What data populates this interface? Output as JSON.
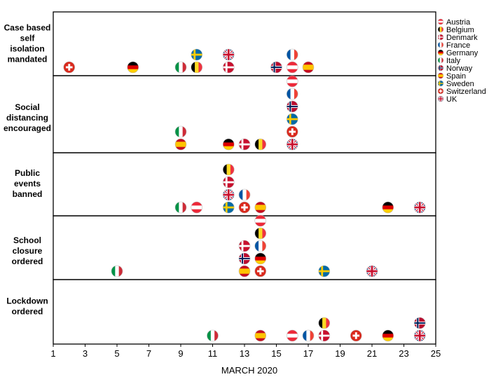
{
  "chart_data": {
    "type": "scatter",
    "xlabel": "MARCH 2020",
    "xlim": [
      1,
      25
    ],
    "x_ticks": [
      1,
      3,
      5,
      7,
      9,
      11,
      13,
      15,
      17,
      19,
      21,
      23,
      25
    ],
    "legend_position": "right",
    "countries": [
      "Austria",
      "Belgium",
      "Denmark",
      "France",
      "Germany",
      "Italy",
      "Norway",
      "Spain",
      "Sweden",
      "Switzerland",
      "UK"
    ],
    "panels": [
      {
        "label": [
          "Case based",
          "self",
          "isolation",
          "mandated"
        ],
        "points": [
          {
            "country": "Switzerland",
            "day": 2
          },
          {
            "country": "Germany",
            "day": 6
          },
          {
            "country": "Italy",
            "day": 9
          },
          {
            "country": "Belgium",
            "day": 10
          },
          {
            "country": "Sweden",
            "day": 10
          },
          {
            "country": "Denmark",
            "day": 12
          },
          {
            "country": "UK",
            "day": 12
          },
          {
            "country": "Norway",
            "day": 15
          },
          {
            "country": "Austria",
            "day": 16
          },
          {
            "country": "France",
            "day": 16
          },
          {
            "country": "Spain",
            "day": 17
          }
        ]
      },
      {
        "label": [
          "Social",
          "distancing",
          "encouraged"
        ],
        "points": [
          {
            "country": "Spain",
            "day": 9
          },
          {
            "country": "Italy",
            "day": 9
          },
          {
            "country": "Germany",
            "day": 12
          },
          {
            "country": "Denmark",
            "day": 13
          },
          {
            "country": "Belgium",
            "day": 14
          },
          {
            "country": "UK",
            "day": 16
          },
          {
            "country": "Switzerland",
            "day": 16
          },
          {
            "country": "Sweden",
            "day": 16
          },
          {
            "country": "Norway",
            "day": 16
          },
          {
            "country": "France",
            "day": 16
          },
          {
            "country": "Austria",
            "day": 16
          }
        ]
      },
      {
        "label": [
          "Public",
          "events",
          "banned"
        ],
        "points": [
          {
            "country": "Italy",
            "day": 9
          },
          {
            "country": "Austria",
            "day": 10
          },
          {
            "country": "Sweden",
            "day": 12
          },
          {
            "country": "UK",
            "day": 12
          },
          {
            "country": "Denmark",
            "day": 12
          },
          {
            "country": "Belgium",
            "day": 12
          },
          {
            "country": "Switzerland",
            "day": 13
          },
          {
            "country": "France",
            "day": 13
          },
          {
            "country": "Spain",
            "day": 14
          },
          {
            "country": "Germany",
            "day": 22
          },
          {
            "country": "UK",
            "day": 24
          }
        ]
      },
      {
        "label": [
          "School",
          "closure",
          "ordered"
        ],
        "points": [
          {
            "country": "Italy",
            "day": 5
          },
          {
            "country": "Spain",
            "day": 13
          },
          {
            "country": "Norway",
            "day": 13
          },
          {
            "country": "Denmark",
            "day": 13
          },
          {
            "country": "Switzerland",
            "day": 14
          },
          {
            "country": "Germany",
            "day": 14
          },
          {
            "country": "France",
            "day": 14
          },
          {
            "country": "Belgium",
            "day": 14
          },
          {
            "country": "Austria",
            "day": 14
          },
          {
            "country": "Sweden",
            "day": 18
          },
          {
            "country": "UK",
            "day": 21
          }
        ]
      },
      {
        "label": [
          "Lockdown",
          "ordered"
        ],
        "points": [
          {
            "country": "Italy",
            "day": 11
          },
          {
            "country": "Spain",
            "day": 14
          },
          {
            "country": "Austria",
            "day": 16
          },
          {
            "country": "France",
            "day": 17
          },
          {
            "country": "Denmark",
            "day": 18
          },
          {
            "country": "Belgium",
            "day": 18
          },
          {
            "country": "Switzerland",
            "day": 20
          },
          {
            "country": "Germany",
            "day": 22
          },
          {
            "country": "UK",
            "day": 24
          },
          {
            "country": "Norway",
            "day": 24
          }
        ]
      }
    ]
  }
}
